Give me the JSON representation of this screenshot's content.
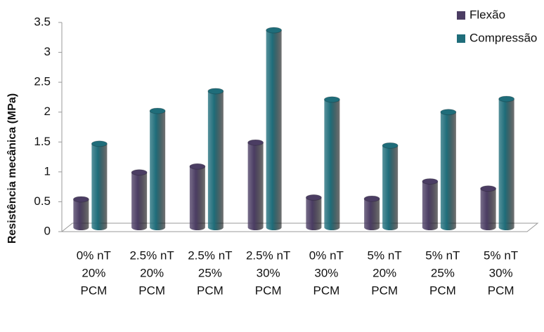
{
  "chart_data": {
    "type": "bar3d",
    "ylabel": "Resistência mecânica (MPa)",
    "categories": [
      [
        "0% nT",
        "20%",
        "PCM"
      ],
      [
        "2.5% nT",
        "20%",
        "PCM"
      ],
      [
        "2.5% nT",
        "25%",
        "PCM"
      ],
      [
        "2.5% nT",
        "30%",
        "PCM"
      ],
      [
        "0% nT",
        "30%",
        "PCM"
      ],
      [
        "5% nT",
        "20%",
        "PCM"
      ],
      [
        "5% nT",
        "25%",
        "PCM"
      ],
      [
        "5% nT",
        "30%",
        "PCM"
      ]
    ],
    "series": [
      {
        "name": "Flexão",
        "color": "#4b3d63",
        "values": [
          0.47,
          0.92,
          1.02,
          1.42,
          0.5,
          0.48,
          0.77,
          0.65
        ]
      },
      {
        "name": "Compressão",
        "color": "#1f6d7a",
        "values": [
          1.4,
          1.95,
          2.28,
          3.3,
          2.14,
          1.37,
          1.93,
          2.15
        ]
      }
    ],
    "ylim": [
      0,
      3.5
    ],
    "yticks": [
      0,
      0.5,
      1,
      1.5,
      2,
      2.5,
      3,
      3.5
    ],
    "legend": "top-right"
  }
}
